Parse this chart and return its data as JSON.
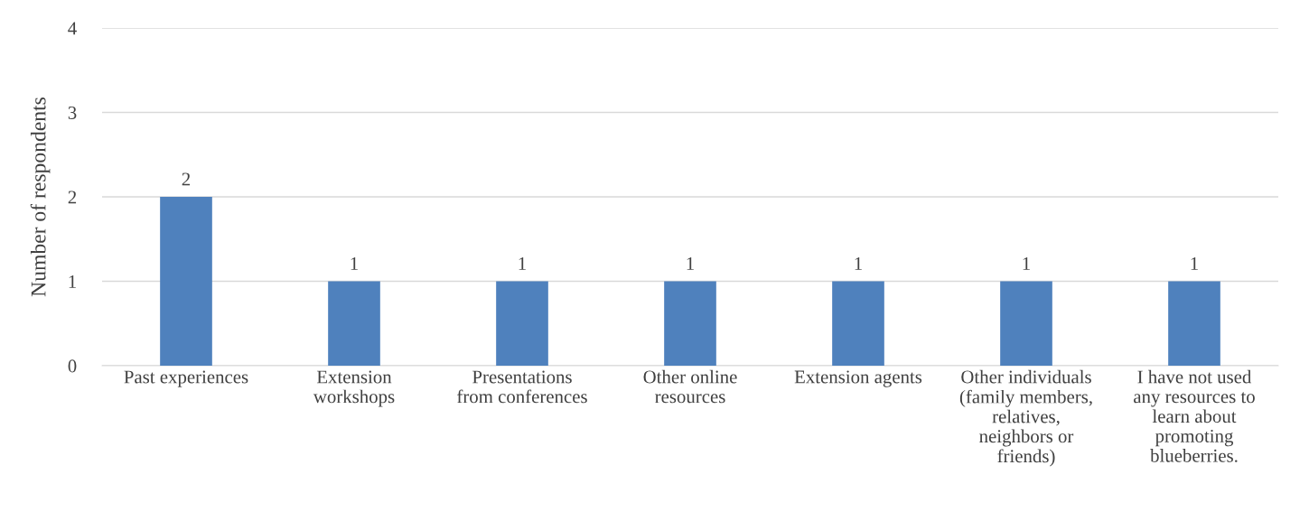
{
  "chart_data": {
    "type": "bar",
    "ylabel": "Number of respondents",
    "categories": [
      "Past experiences",
      "Extension\nworkshops",
      "Presentations\nfrom conferences",
      "Other online\nresources",
      "Extension agents",
      "Other individuals\n(family members,\nrelatives,\nneighbors or\nfriends)",
      "I have not used\nany resources to\nlearn about\npromoting\nblueberries."
    ],
    "values": [
      2,
      1,
      1,
      1,
      1,
      1,
      1
    ],
    "color": "#4f81bd",
    "ylim": [
      0,
      4
    ],
    "yticks": [
      0,
      1,
      2,
      3,
      4
    ],
    "grid": "y",
    "data_labels": true
  }
}
